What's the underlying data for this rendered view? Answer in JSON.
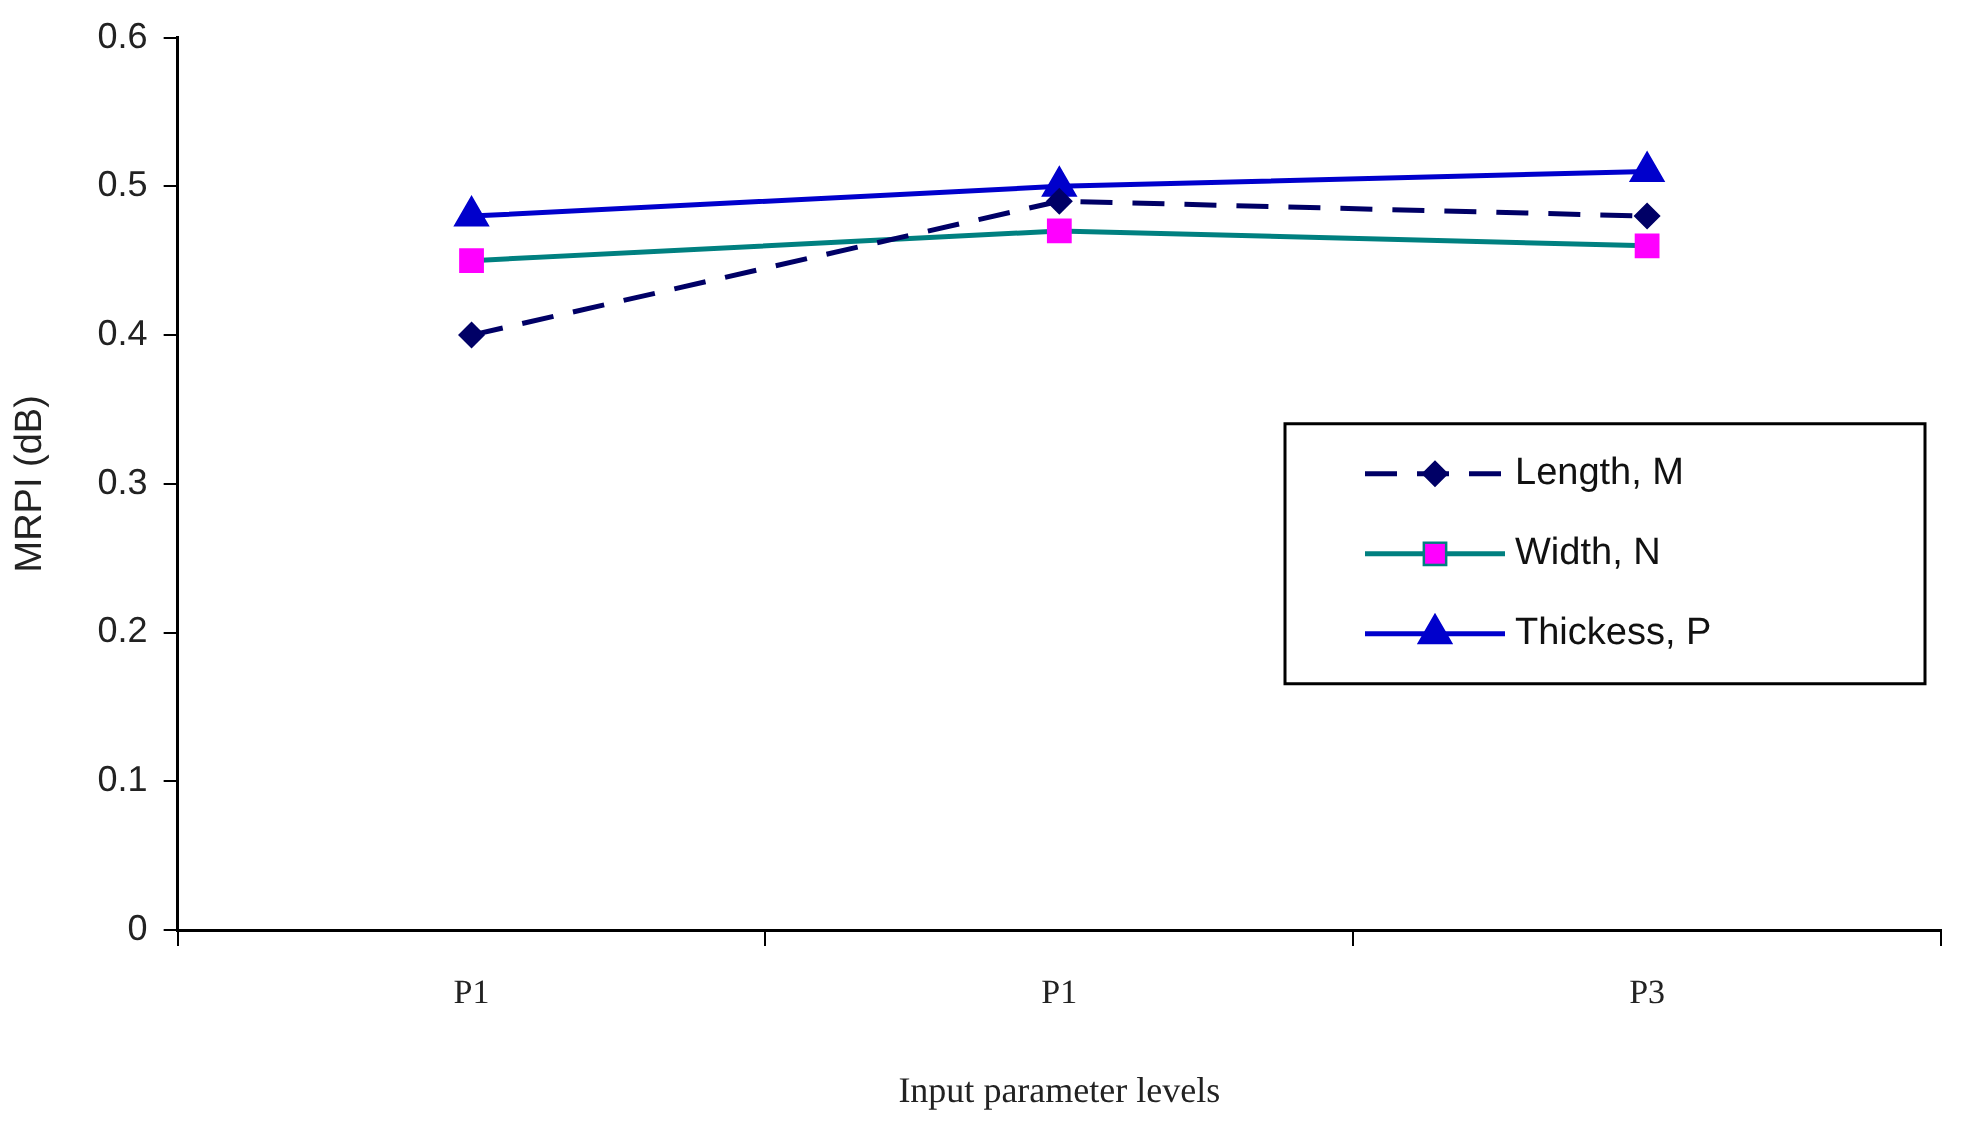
{
  "chart_data": {
    "type": "line",
    "xlabel": "Input parameter levels",
    "ylabel": "MRPI (dB)",
    "categories": [
      "P1",
      "P1",
      "P3"
    ],
    "series": [
      {
        "name": "Length, M",
        "color": "#000066",
        "marker": "diamond",
        "line_style": "dashed",
        "values": [
          0.4,
          0.49,
          0.48
        ]
      },
      {
        "name": "Width, N",
        "color": "#008080",
        "colors": [
          "#ff00ff",
          "#ff00ff",
          "#ff00ff"
        ],
        "marker": "square",
        "line_style": "solid",
        "values": [
          0.45,
          0.47,
          0.46
        ]
      },
      {
        "name": "Thickess, P",
        "color": "#0000cc",
        "marker": "triangle",
        "line_style": "solid",
        "values": [
          0.48,
          0.5,
          0.51
        ]
      }
    ],
    "ylim": [
      0,
      0.6
    ],
    "yticks": [
      0,
      0.1,
      0.2,
      0.3,
      0.4,
      0.5,
      0.6
    ],
    "grid": false,
    "legend": "right"
  }
}
